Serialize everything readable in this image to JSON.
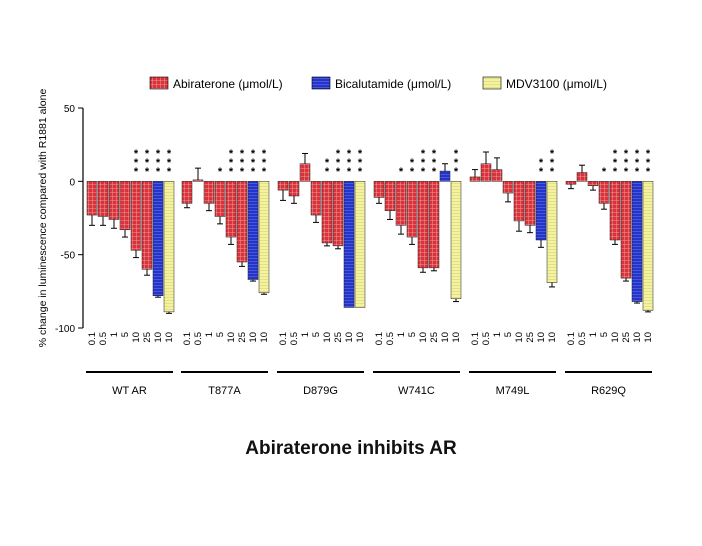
{
  "caption": "Abiraterone inhibits AR",
  "colors": {
    "abiraterone": "#d9323a",
    "bicalutamide": "#2433c9",
    "mdv3100": "#f4f29c",
    "axis": "#000000"
  },
  "chart_data": {
    "type": "bar",
    "ylabel": "% change in luminescence compared with R1881 alone",
    "ylim": [
      -100,
      50
    ],
    "yticks": [
      50,
      0,
      -50,
      -100
    ],
    "grid": false,
    "legend_position": "top",
    "legend": [
      {
        "key": "abiraterone",
        "label": "Abiraterone (μmol/L)"
      },
      {
        "key": "bicalutamide",
        "label": "Bicalutamide (μmol/L)"
      },
      {
        "key": "mdv3100",
        "label": "MDV3100 (μmol/L)"
      }
    ],
    "groups": [
      {
        "name": "WT AR",
        "bars": [
          {
            "series": "abiraterone",
            "dose": "0.1",
            "value": -23,
            "error": 7,
            "stars": ""
          },
          {
            "series": "abiraterone",
            "dose": "0.5",
            "value": -24,
            "error": 6,
            "stars": ""
          },
          {
            "series": "abiraterone",
            "dose": "1",
            "value": -26,
            "error": 6,
            "stars": ""
          },
          {
            "series": "abiraterone",
            "dose": "5",
            "value": -33,
            "error": 5,
            "stars": ""
          },
          {
            "series": "abiraterone",
            "dose": "10",
            "value": -47,
            "error": 5,
            "stars": "***"
          },
          {
            "series": "abiraterone",
            "dose": "25",
            "value": -60,
            "error": 4,
            "stars": "***"
          },
          {
            "series": "bicalutamide",
            "dose": "10",
            "value": -78,
            "error": 1,
            "stars": "***"
          },
          {
            "series": "mdv3100",
            "dose": "10",
            "value": -89,
            "error": 1,
            "stars": "***"
          }
        ]
      },
      {
        "name": "T877A",
        "bars": [
          {
            "series": "abiraterone",
            "dose": "0.1",
            "value": -15,
            "error": 3,
            "stars": ""
          },
          {
            "series": "abiraterone",
            "dose": "0.5",
            "value": 1,
            "error": 8,
            "stars": ""
          },
          {
            "series": "abiraterone",
            "dose": "1",
            "value": -15,
            "error": 5,
            "stars": ""
          },
          {
            "series": "abiraterone",
            "dose": "5",
            "value": -24,
            "error": 5,
            "stars": "*"
          },
          {
            "series": "abiraterone",
            "dose": "10",
            "value": -38,
            "error": 5,
            "stars": "***"
          },
          {
            "series": "abiraterone",
            "dose": "25",
            "value": -55,
            "error": 3,
            "stars": "***"
          },
          {
            "series": "bicalutamide",
            "dose": "10",
            "value": -67,
            "error": 1,
            "stars": "***"
          },
          {
            "series": "mdv3100",
            "dose": "10",
            "value": -76,
            "error": 1,
            "stars": "***"
          }
        ]
      },
      {
        "name": "D879G",
        "bars": [
          {
            "series": "abiraterone",
            "dose": "0.1",
            "value": -6,
            "error": 7,
            "stars": ""
          },
          {
            "series": "abiraterone",
            "dose": "0.5",
            "value": -10,
            "error": 5,
            "stars": ""
          },
          {
            "series": "abiraterone",
            "dose": "1",
            "value": 12,
            "error": 7,
            "stars": ""
          },
          {
            "series": "abiraterone",
            "dose": "5",
            "value": -23,
            "error": 5,
            "stars": ""
          },
          {
            "series": "abiraterone",
            "dose": "10",
            "value": -42,
            "error": 2,
            "stars": "**"
          },
          {
            "series": "abiraterone",
            "dose": "25",
            "value": -44,
            "error": 2,
            "stars": "***"
          },
          {
            "series": "bicalutamide",
            "dose": "10",
            "value": -86,
            "error": 0,
            "stars": "***"
          },
          {
            "series": "mdv3100",
            "dose": "10",
            "value": -86,
            "error": 0,
            "stars": "***"
          }
        ]
      },
      {
        "name": "W741C",
        "bars": [
          {
            "series": "abiraterone",
            "dose": "0.1",
            "value": -11,
            "error": 4,
            "stars": ""
          },
          {
            "series": "abiraterone",
            "dose": "0.5",
            "value": -20,
            "error": 6,
            "stars": ""
          },
          {
            "series": "abiraterone",
            "dose": "1",
            "value": -30,
            "error": 6,
            "stars": "*"
          },
          {
            "series": "abiraterone",
            "dose": "5",
            "value": -38,
            "error": 5,
            "stars": "**"
          },
          {
            "series": "abiraterone",
            "dose": "10",
            "value": -59,
            "error": 3,
            "stars": "***"
          },
          {
            "series": "abiraterone",
            "dose": "25",
            "value": -59,
            "error": 2,
            "stars": "***"
          },
          {
            "series": "bicalutamide",
            "dose": "10",
            "value": 7,
            "error": 5,
            "stars": ""
          },
          {
            "series": "mdv3100",
            "dose": "10",
            "value": -80,
            "error": 2,
            "stars": "***"
          }
        ]
      },
      {
        "name": "M749L",
        "bars": [
          {
            "series": "abiraterone",
            "dose": "0.1",
            "value": 3,
            "error": 5,
            "stars": ""
          },
          {
            "series": "abiraterone",
            "dose": "0.5",
            "value": 12,
            "error": 8,
            "stars": ""
          },
          {
            "series": "abiraterone",
            "dose": "1",
            "value": 8,
            "error": 8,
            "stars": ""
          },
          {
            "series": "abiraterone",
            "dose": "5",
            "value": -8,
            "error": 6,
            "stars": ""
          },
          {
            "series": "abiraterone",
            "dose": "10",
            "value": -27,
            "error": 7,
            "stars": ""
          },
          {
            "series": "abiraterone",
            "dose": "25",
            "value": -30,
            "error": 5,
            "stars": ""
          },
          {
            "series": "bicalutamide",
            "dose": "10",
            "value": -40,
            "error": 5,
            "stars": "**"
          },
          {
            "series": "mdv3100",
            "dose": "10",
            "value": -69,
            "error": 3,
            "stars": "***"
          }
        ]
      },
      {
        "name": "R629Q",
        "bars": [
          {
            "series": "abiraterone",
            "dose": "0.1",
            "value": -2,
            "error": 3,
            "stars": ""
          },
          {
            "series": "abiraterone",
            "dose": "0.5",
            "value": 6,
            "error": 5,
            "stars": ""
          },
          {
            "series": "abiraterone",
            "dose": "1",
            "value": -3,
            "error": 3,
            "stars": ""
          },
          {
            "series": "abiraterone",
            "dose": "5",
            "value": -15,
            "error": 4,
            "stars": "*"
          },
          {
            "series": "abiraterone",
            "dose": "10",
            "value": -40,
            "error": 3,
            "stars": "***"
          },
          {
            "series": "abiraterone",
            "dose": "25",
            "value": -66,
            "error": 2,
            "stars": "***"
          },
          {
            "series": "bicalutamide",
            "dose": "10",
            "value": -82,
            "error": 1,
            "stars": "***"
          },
          {
            "series": "mdv3100",
            "dose": "10",
            "value": -88,
            "error": 1,
            "stars": "***"
          }
        ]
      }
    ]
  }
}
